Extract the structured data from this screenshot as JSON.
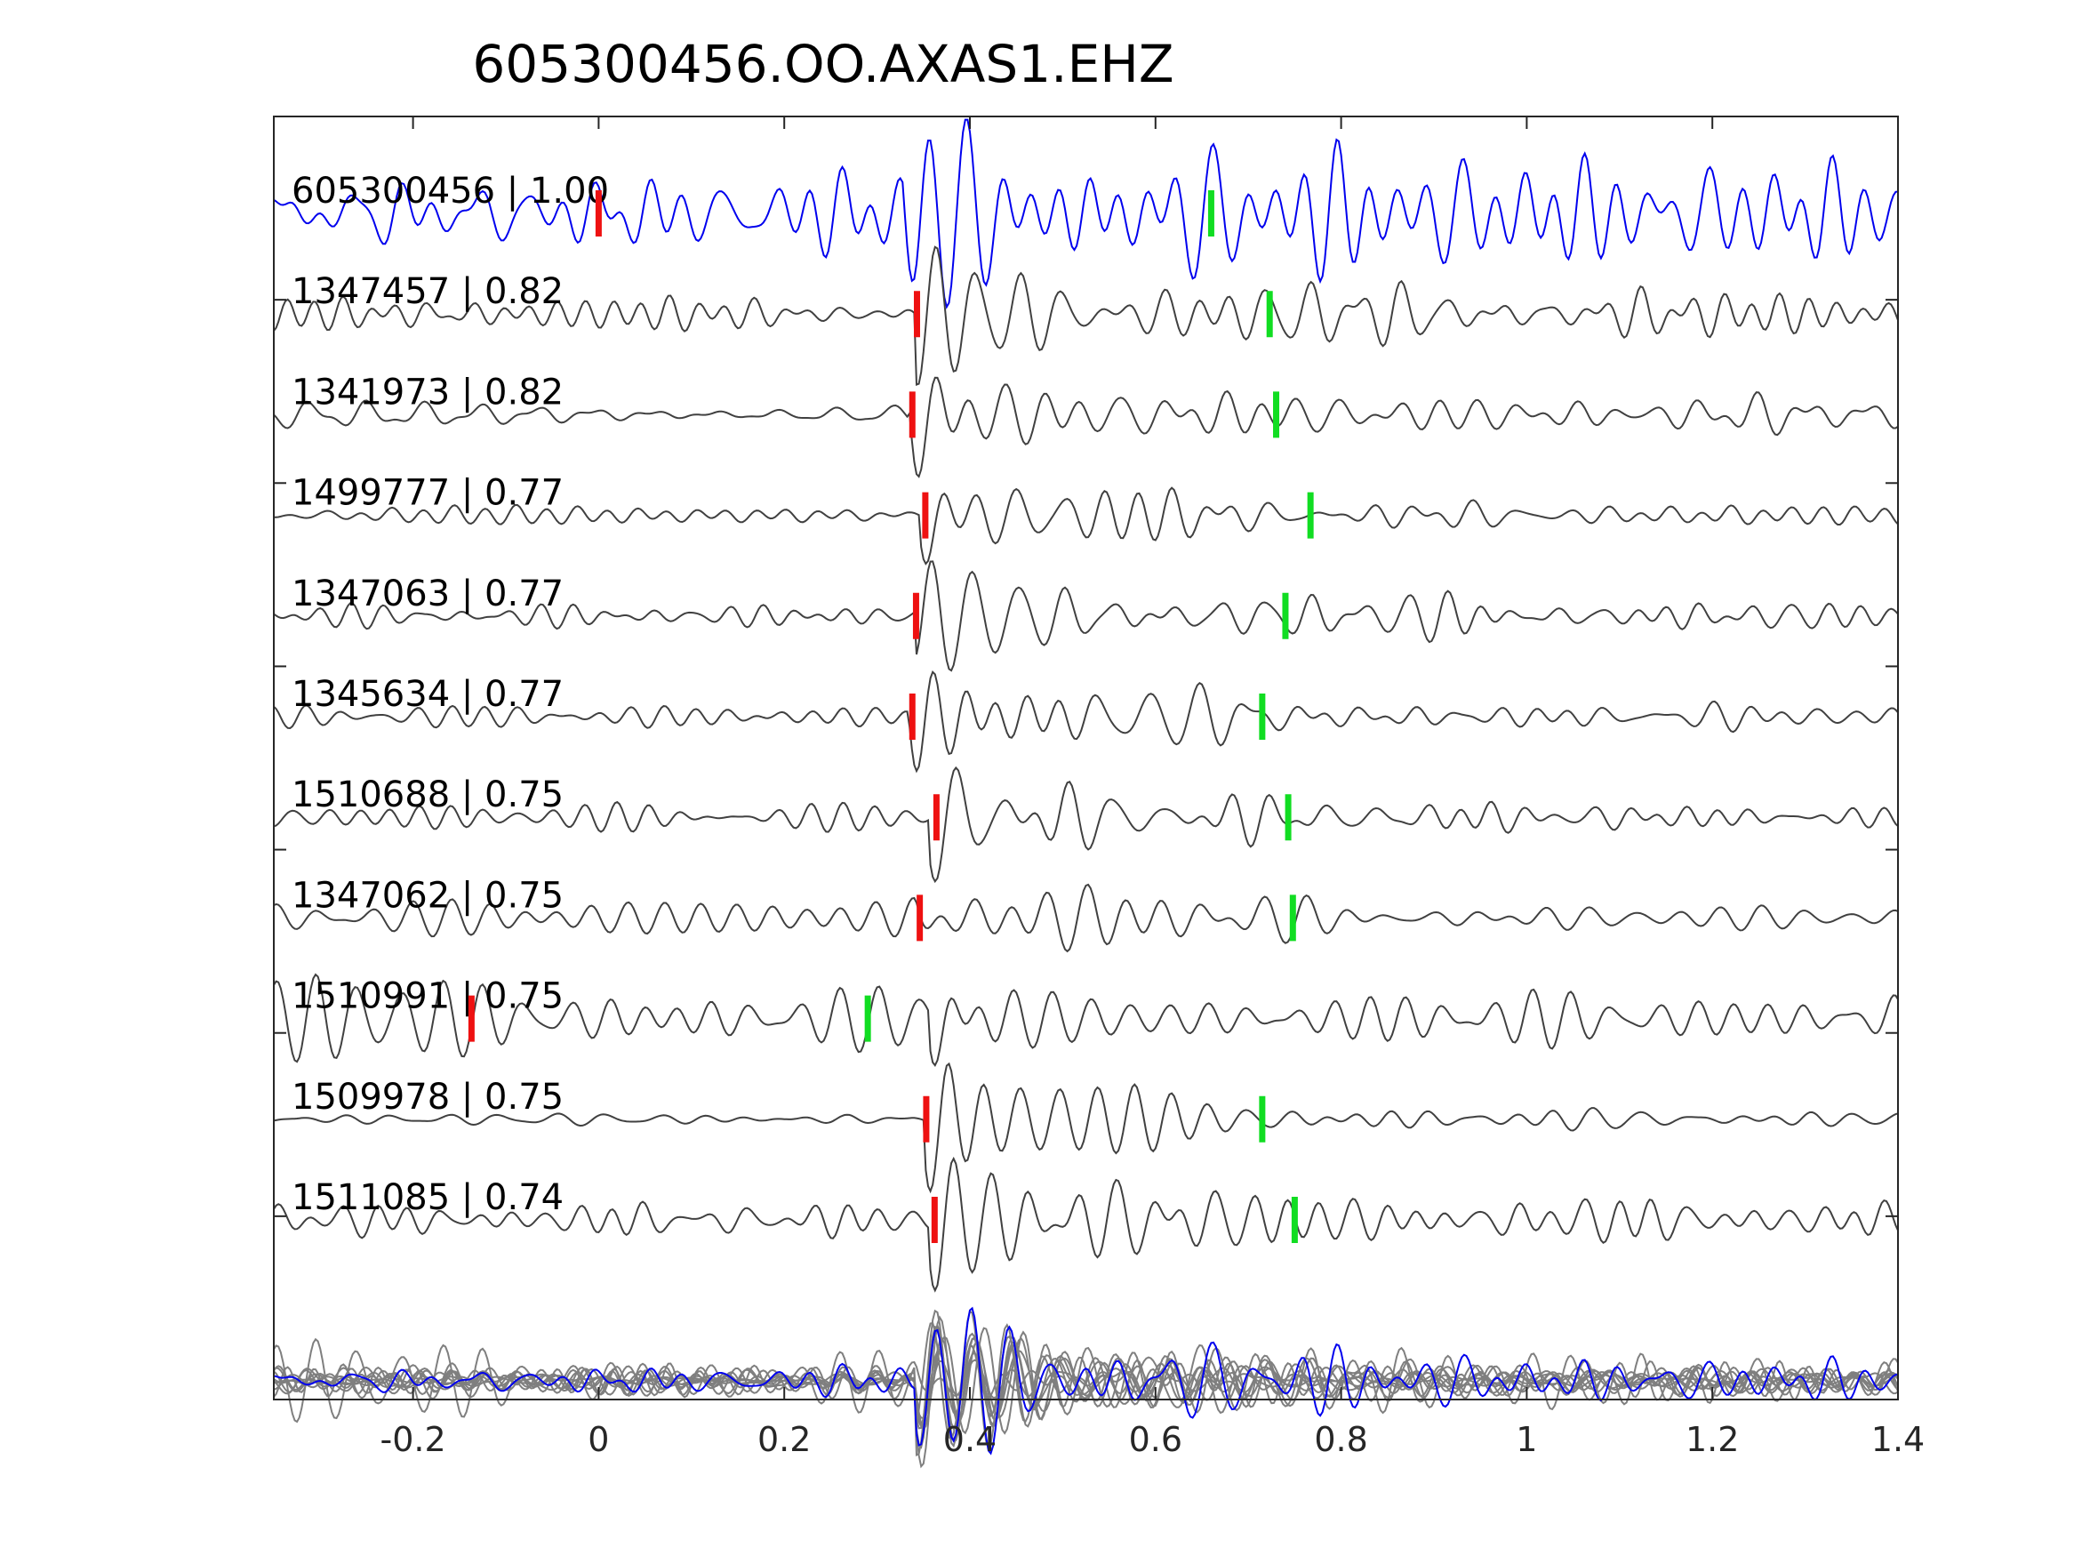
{
  "chart_data": {
    "type": "line",
    "title": "605300456.OO.AXAS1.EHZ",
    "xlabel": "",
    "ylabel": "",
    "xlim": [
      -0.35,
      1.4
    ],
    "xticks": [
      -0.2,
      0,
      0.2,
      0.4,
      0.6,
      0.8,
      1,
      1.2,
      1.4
    ],
    "xtick_labels": [
      "-0.2",
      "0",
      "0.2",
      "0.4",
      "0.6",
      "0.8",
      "1",
      "1.2",
      "1.4"
    ],
    "grid": false,
    "colors": {
      "reference": "#0000ee",
      "match": "#404040",
      "stack": "#7f7f7f",
      "p_pick": "#ee1111",
      "s_pick": "#11dd22",
      "axes": "#262626"
    },
    "series": [
      {
        "name": "605300456 | 1.00",
        "id": "605300456",
        "cc": 1.0,
        "p_pick": 0.0,
        "s_pick": 0.66,
        "onset": 0.33,
        "amp": 0.55,
        "noise": 0.26,
        "freq": 26,
        "reference": true,
        "seed": 1
      },
      {
        "name": "1347457 | 0.82",
        "id": "1347457",
        "cc": 0.82,
        "p_pick": 0.343,
        "s_pick": 0.723,
        "onset": 0.34,
        "amp": 0.52,
        "noise": 0.09,
        "freq": 25,
        "seed": 2
      },
      {
        "name": "1341973 | 0.82",
        "id": "1341973",
        "cc": 0.82,
        "p_pick": 0.338,
        "s_pick": 0.73,
        "onset": 0.335,
        "amp": 0.52,
        "noise": 0.1,
        "freq": 27,
        "seed": 3
      },
      {
        "name": "1499777 | 0.77",
        "id": "1499777",
        "cc": 0.77,
        "p_pick": 0.352,
        "s_pick": 0.767,
        "onset": 0.345,
        "amp": 0.48,
        "noise": 0.06,
        "freq": 24,
        "seed": 4
      },
      {
        "name": "1347063 | 0.77",
        "id": "1347063",
        "cc": 0.77,
        "p_pick": 0.342,
        "s_pick": 0.74,
        "onset": 0.34,
        "amp": 0.5,
        "noise": 0.1,
        "freq": 26,
        "seed": 5
      },
      {
        "name": "1345634 | 0.77",
        "id": "1345634",
        "cc": 0.77,
        "p_pick": 0.338,
        "s_pick": 0.715,
        "onset": 0.335,
        "amp": 0.46,
        "noise": 0.06,
        "freq": 28,
        "seed": 6
      },
      {
        "name": "1510688 | 0.75",
        "id": "1510688",
        "cc": 0.75,
        "p_pick": 0.364,
        "s_pick": 0.743,
        "onset": 0.355,
        "amp": 0.42,
        "noise": 0.08,
        "freq": 24,
        "seed": 7
      },
      {
        "name": "1347062 | 0.75",
        "id": "1347062",
        "cc": 0.75,
        "p_pick": 0.346,
        "s_pick": 0.748,
        "onset": 0.34,
        "amp": 0.45,
        "noise": 0.1,
        "freq": 25,
        "seed": 8
      },
      {
        "name": "1510991 | 0.75",
        "id": "1510991",
        "cc": 0.75,
        "p_pick": -0.137,
        "s_pick": 0.29,
        "onset": 0.355,
        "amp": 0.5,
        "noise": 0.22,
        "freq": 27,
        "seed": 9
      },
      {
        "name": "1509978 | 0.75",
        "id": "1509978",
        "cc": 0.75,
        "p_pick": 0.353,
        "s_pick": 0.715,
        "onset": 0.35,
        "amp": 0.45,
        "noise": 0.03,
        "freq": 25,
        "seed": 10
      },
      {
        "name": "1511085 | 0.74",
        "id": "1511085",
        "cc": 0.74,
        "p_pick": 0.362,
        "s_pick": 0.75,
        "onset": 0.355,
        "amp": 0.48,
        "noise": 0.12,
        "freq": 23,
        "seed": 11
      }
    ],
    "stack": {
      "label": "",
      "offset_index": 11.6
    }
  }
}
